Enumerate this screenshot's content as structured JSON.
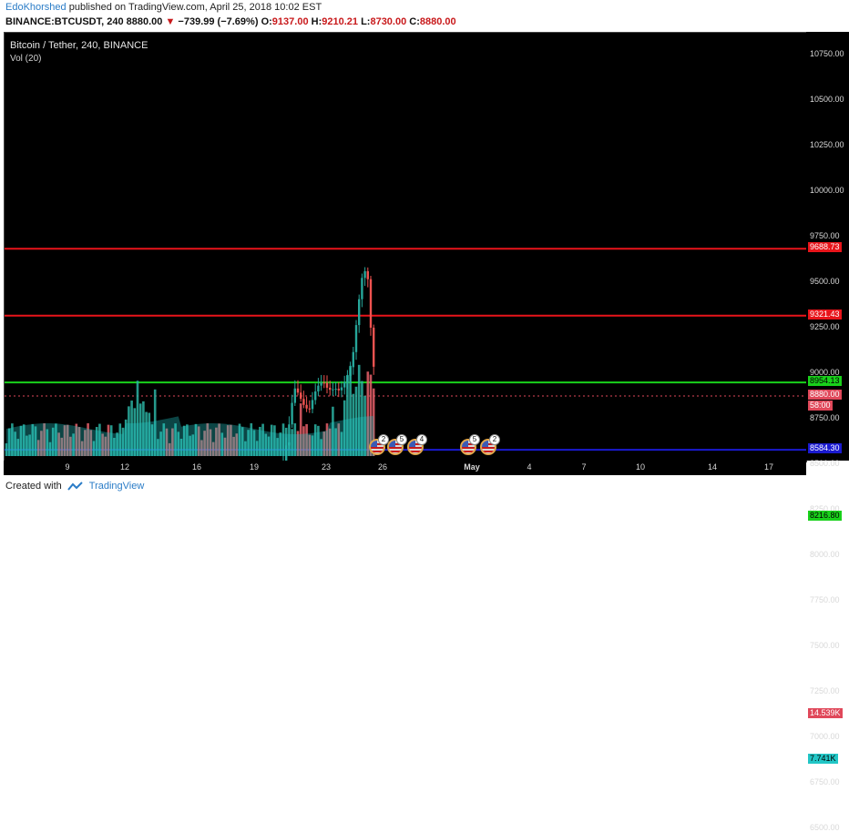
{
  "header": {
    "author": "EdoKhorshed",
    "published": "published on TradingView.com, April 25, 2018 10:02 EST",
    "symbol": "BINANCE:BTCUSDT, 240",
    "last": "8880.00",
    "arrow": "▼",
    "change": "−739.99 (−7.69%)",
    "o_label": "O:",
    "o_value": "9137.00",
    "h_label": "H:",
    "h_value": "9210.21",
    "l_label": "L:",
    "l_value": "8730.00",
    "c_label": "C:",
    "c_value": "8880.00"
  },
  "chart": {
    "title": "Bitcoin / Tether, 240, BINANCE",
    "volume_label": "Vol (20)",
    "y_ticks": [
      "10750.00",
      "10500.00",
      "10250.00",
      "10000.00",
      "9750.00",
      "9500.00",
      "9250.00",
      "9000.00",
      "8750.00",
      "8500.00",
      "8250.00",
      "8000.00",
      "7750.00",
      "7500.00",
      "7250.00",
      "7000.00",
      "6750.00",
      "6500.00"
    ],
    "x_ticks": [
      "9",
      "12",
      "16",
      "19",
      "23",
      "26",
      "May",
      "4",
      "7",
      "10",
      "14",
      "17"
    ],
    "levels": [
      {
        "price": 9688.73,
        "label": "9688.73",
        "color": "#e8141a"
      },
      {
        "price": 9321.43,
        "label": "9321.43",
        "color": "#e8141a"
      },
      {
        "price": 8954.13,
        "label": "8954.13",
        "color": "#19d11b"
      },
      {
        "price": 8584.3,
        "label": "8584.30",
        "color": "#1a1ad0"
      },
      {
        "price": 8216.8,
        "label": "8216.80",
        "color": "#19d11b"
      }
    ],
    "price_tag": {
      "label": "8880.00",
      "color": "#e0485a"
    },
    "count_tag": {
      "label": "58:00",
      "color": "#e0485a"
    },
    "vol_tags": [
      {
        "label": "14.539K",
        "color": "#e0485a"
      },
      {
        "label": "7.741K",
        "color": "#22c6c6"
      }
    ],
    "events": [
      {
        "count": "2"
      },
      {
        "count": "5"
      },
      {
        "count": "4"
      },
      {
        "count": "5"
      },
      {
        "count": "2"
      }
    ]
  },
  "footer": {
    "created_with": "Created with",
    "brand": "TradingView"
  },
  "colors": {
    "up": "#26a69a",
    "down": "#ef5350",
    "bg": "#000000"
  }
}
